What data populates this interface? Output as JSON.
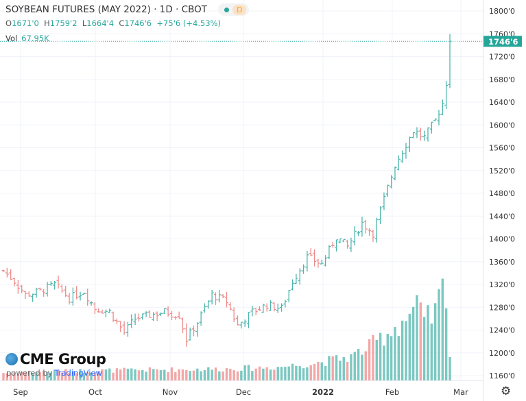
{
  "header": {
    "title": "SOYBEAN FUTURES (MAY 2022) · 1D · CBOT",
    "interval_badge": "D",
    "ohlc": {
      "o_label": "O",
      "o": "1671'0",
      "h_label": "H",
      "h": "1759'2",
      "l_label": "L",
      "l": "1664'4",
      "c_label": "C",
      "c": "1746'6",
      "change": "+75'6 (+4.53%)"
    },
    "volume_label": "Vol",
    "volume": "67.95K"
  },
  "price_axis": {
    "ticks": [
      "1800'0",
      "1760'0",
      "1720'0",
      "1680'0",
      "1640'0",
      "1600'0",
      "1560'0",
      "1520'0",
      "1480'0",
      "1440'0",
      "1400'0",
      "1360'0",
      "1320'0",
      "1280'0",
      "1240'0",
      "1200'0",
      "1160'0"
    ],
    "tick_values": [
      1800,
      1760,
      1720,
      1680,
      1640,
      1600,
      1560,
      1520,
      1480,
      1440,
      1400,
      1360,
      1320,
      1280,
      1240,
      1200,
      1160
    ],
    "last_price_label": "1746'6",
    "last_price": 1746.75
  },
  "time_axis": {
    "ticks": [
      "Sep",
      "Oct",
      "Nov",
      "Dec",
      "2022",
      "Feb",
      "Mar"
    ]
  },
  "branding": {
    "logo": "CME Group",
    "powered_by": "powered by",
    "tradingview": "TradingView"
  },
  "colors": {
    "up": "#4db6ac",
    "down": "#ef8a8a",
    "accent": "#26a69a",
    "grid": "#f0f3fa"
  },
  "chart_data": {
    "type": "ohlc",
    "bars": 123,
    "close_anchors": [
      [
        0,
        1344
      ],
      [
        3,
        1326
      ],
      [
        6,
        1302
      ],
      [
        10,
        1308
      ],
      [
        14,
        1320
      ],
      [
        18,
        1296
      ],
      [
        22,
        1308
      ],
      [
        25,
        1278
      ],
      [
        29,
        1272
      ],
      [
        33,
        1236
      ],
      [
        36,
        1260
      ],
      [
        40,
        1266
      ],
      [
        44,
        1272
      ],
      [
        48,
        1266
      ],
      [
        50,
        1224
      ],
      [
        53,
        1254
      ],
      [
        57,
        1302
      ],
      [
        61,
        1290
      ],
      [
        64,
        1248
      ],
      [
        68,
        1272
      ],
      [
        72,
        1284
      ],
      [
        76,
        1278
      ],
      [
        79,
        1326
      ],
      [
        83,
        1368
      ],
      [
        87,
        1356
      ],
      [
        91,
        1404
      ],
      [
        94,
        1386
      ],
      [
        98,
        1428
      ],
      [
        101,
        1410
      ],
      [
        104,
        1470
      ],
      [
        107,
        1530
      ],
      [
        110,
        1566
      ],
      [
        112,
        1590
      ],
      [
        115,
        1578
      ],
      [
        118,
        1608
      ],
      [
        120,
        1638
      ],
      [
        121,
        1674
      ],
      [
        122,
        1746.75
      ]
    ],
    "volume_anchors": [
      [
        0,
        8
      ],
      [
        20,
        10
      ],
      [
        40,
        11
      ],
      [
        60,
        12
      ],
      [
        75,
        14
      ],
      [
        85,
        18
      ],
      [
        95,
        25
      ],
      [
        100,
        35
      ],
      [
        105,
        50
      ],
      [
        110,
        65
      ],
      [
        113,
        75
      ],
      [
        115,
        60
      ],
      [
        118,
        70
      ],
      [
        120,
        95
      ],
      [
        121,
        100
      ],
      [
        122,
        30
      ]
    ],
    "ylim": [
      1160,
      1800
    ]
  }
}
